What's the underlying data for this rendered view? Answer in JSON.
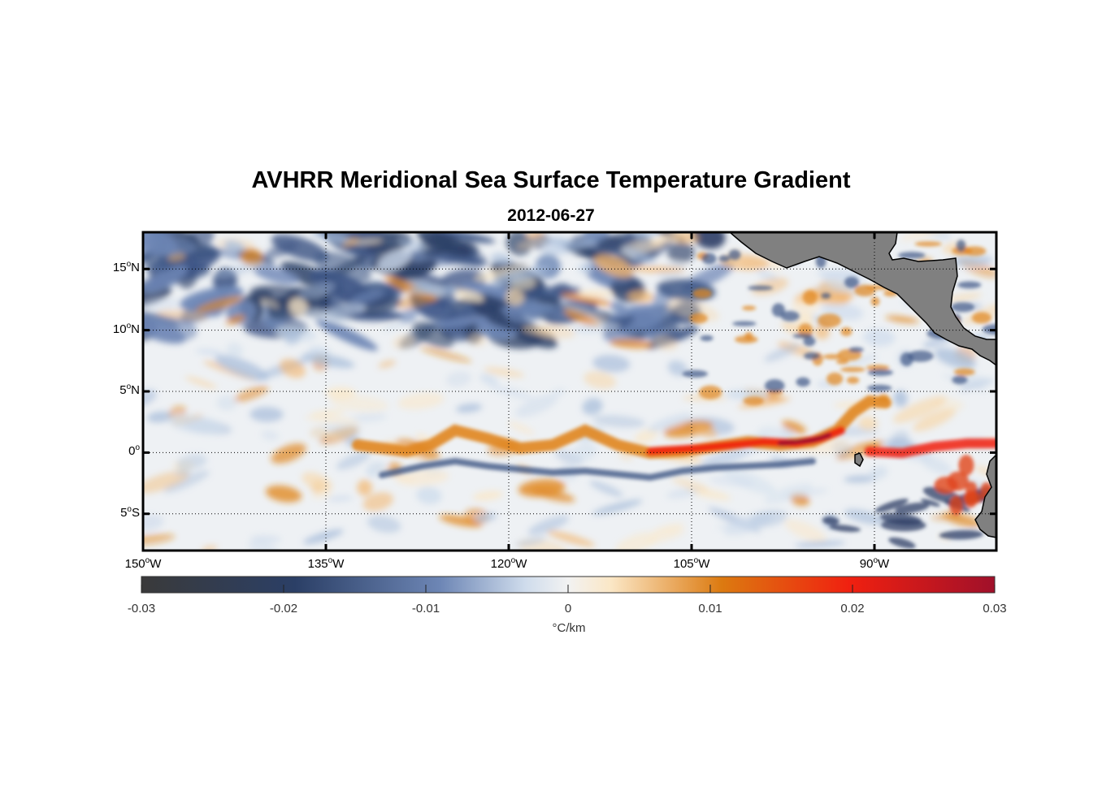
{
  "title": "AVHRR Meridional Sea Surface Temperature Gradient",
  "subtitle": "2012-06-27",
  "map": {
    "lon_range": [
      -150,
      -80
    ],
    "lat_range": [
      -8,
      18
    ],
    "lat_ticks": [
      {
        "value": 15,
        "num": "15",
        "hemi": "N"
      },
      {
        "value": 10,
        "num": "10",
        "hemi": "N"
      },
      {
        "value": 5,
        "num": "5",
        "hemi": "N"
      },
      {
        "value": 0,
        "num": "0",
        "hemi": ""
      },
      {
        "value": -5,
        "num": "5",
        "hemi": "S"
      }
    ],
    "lon_ticks": [
      {
        "value": -150,
        "num": "150",
        "hemi": "W"
      },
      {
        "value": -135,
        "num": "135",
        "hemi": "W"
      },
      {
        "value": -120,
        "num": "120",
        "hemi": "W"
      },
      {
        "value": -105,
        "num": "105",
        "hemi": "W"
      },
      {
        "value": -90,
        "num": "90",
        "hemi": "W"
      }
    ],
    "grid": "dotted",
    "land_color": "#808080"
  },
  "colorbar": {
    "ticks": [
      "-0.03",
      "-0.02",
      "-0.01",
      "0",
      "0.01",
      "0.02",
      "0.03"
    ],
    "range": [
      -0.03,
      0.03
    ],
    "unit": "°C/km",
    "colors": [
      "#3a3a3a",
      "#2b3f66",
      "#6d86b5",
      "#dfe8f2",
      "#fbe7c6",
      "#dc7a10",
      "#f02010",
      "#a0102a"
    ]
  }
}
